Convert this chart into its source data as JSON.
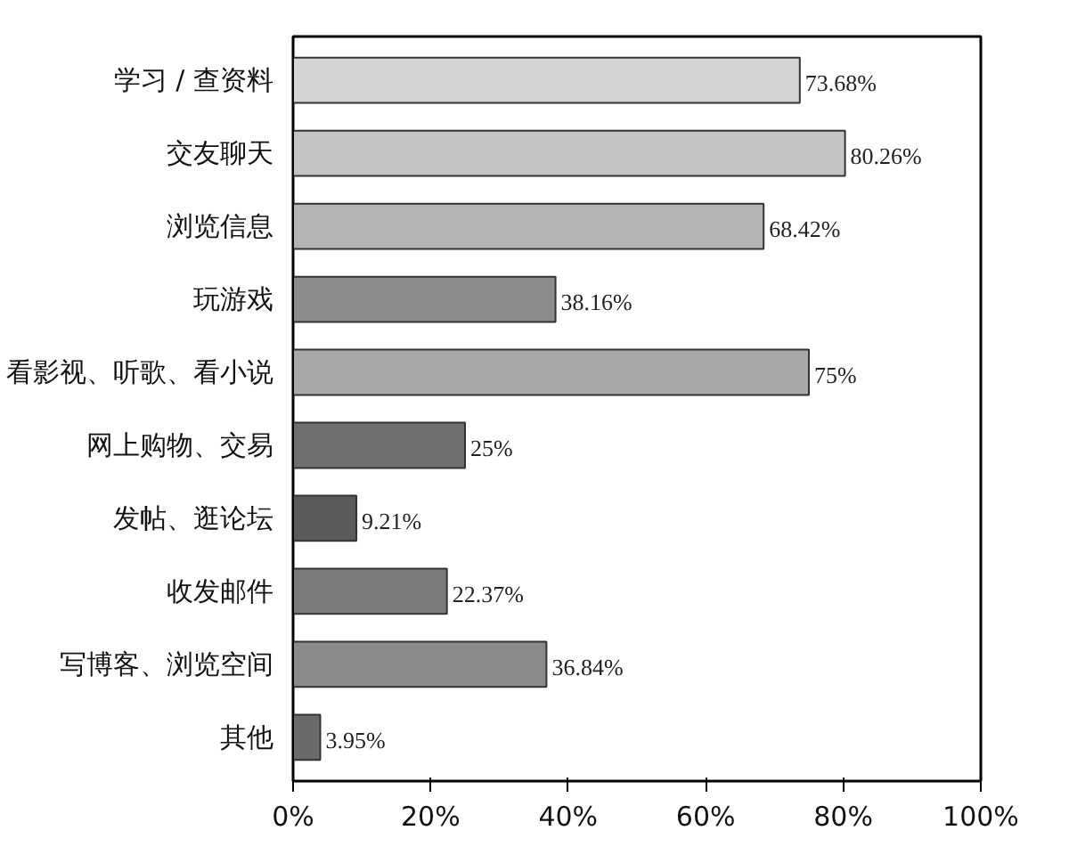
{
  "chart_data": {
    "type": "bar",
    "orientation": "horizontal",
    "categories": [
      "学习 / 查资料",
      "交友聊天",
      "浏览信息",
      "玩游戏",
      "看影视、听歌、看小说",
      "网上购物、交易",
      "发帖、逛论坛",
      "收发邮件",
      "写博客、浏览空间",
      "其他"
    ],
    "values": [
      73.68,
      80.26,
      68.42,
      38.16,
      75,
      25,
      9.21,
      22.37,
      36.84,
      3.95
    ],
    "value_labels": [
      "73.68%",
      "80.26%",
      "68.42%",
      "38.16%",
      "75%",
      "25%",
      "9.21%",
      "22.37%",
      "36.84%",
      "3.95%"
    ],
    "colors": [
      "#d4d4d4",
      "#c4c4c4",
      "#b4b4b4",
      "#8c8c8c",
      "#a8a8a8",
      "#6e6e6e",
      "#5a5a5a",
      "#7a7a7a",
      "#8a8a8a",
      "#6a6a6a"
    ],
    "xlim": [
      0,
      100
    ],
    "xticks": [
      {
        "value": 0,
        "label": "0%"
      },
      {
        "value": 20,
        "label": "20%"
      },
      {
        "value": 40,
        "label": "40%"
      },
      {
        "value": 60,
        "label": "60%"
      },
      {
        "value": 80,
        "label": "80%"
      },
      {
        "value": 100,
        "label": "100%"
      }
    ],
    "grid": false
  }
}
